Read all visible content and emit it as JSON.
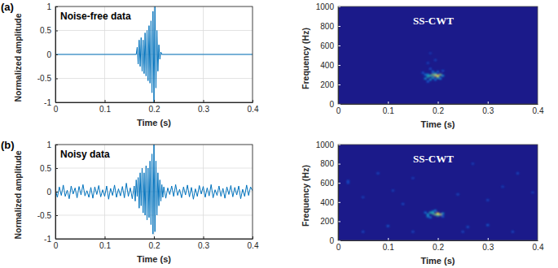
{
  "chart_data": [
    {
      "type": "line",
      "panel_label": "(a)",
      "annotation": "Noise-free data",
      "x_label": "Time (s)",
      "y_label": "Normalized amplitude",
      "xlim": [
        0,
        0.4
      ],
      "xticks": [
        0,
        0.1,
        0.2,
        0.3,
        0.4
      ],
      "ylim": [
        -1,
        1
      ],
      "yticks": [
        -1,
        -0.5,
        0,
        0.5,
        1
      ],
      "grid": true,
      "x": [
        0,
        0.164,
        0.166,
        0.168,
        0.17,
        0.172,
        0.174,
        0.176,
        0.178,
        0.18,
        0.182,
        0.184,
        0.186,
        0.188,
        0.19,
        0.192,
        0.194,
        0.196,
        0.198,
        0.2,
        0.202,
        0.204,
        0.206,
        0.208,
        0.21,
        0.212,
        0.214,
        0.216,
        0.4
      ],
      "series": [
        {
          "color": "#0072bd",
          "values": [
            0,
            0,
            0.15,
            -0.2,
            0.3,
            -0.25,
            0.35,
            -0.35,
            0.3,
            -0.4,
            0.45,
            -0.45,
            0.5,
            -0.55,
            0.6,
            -0.6,
            0.7,
            -0.8,
            0.9,
            -1,
            1,
            -0.7,
            0.5,
            -0.35,
            0.2,
            -0.1,
            0.05,
            0,
            0
          ]
        }
      ]
    },
    {
      "type": "heatmap",
      "annotation": "SS-CWT",
      "x_label": "Time (s)",
      "y_label": "Frequency (Hz)",
      "xlim": [
        0,
        0.4
      ],
      "xticks": [
        0,
        0.1,
        0.2,
        0.3,
        0.4
      ],
      "ylim": [
        0,
        1000
      ],
      "yticks": [
        0,
        200,
        400,
        600,
        800,
        1000
      ],
      "zlim": [
        0,
        1
      ],
      "cell_size": [
        0.005,
        20
      ],
      "cells": [
        [
          0.175,
          260,
          0.3
        ],
        [
          0.18,
          280,
          0.45
        ],
        [
          0.185,
          290,
          0.5
        ],
        [
          0.19,
          300,
          0.6
        ],
        [
          0.195,
          290,
          0.7
        ],
        [
          0.2,
          290,
          0.95
        ],
        [
          0.205,
          300,
          0.6
        ],
        [
          0.2,
          270,
          0.5
        ],
        [
          0.19,
          270,
          0.4
        ],
        [
          0.18,
          300,
          0.35
        ],
        [
          0.185,
          250,
          0.3
        ],
        [
          0.195,
          310,
          0.45
        ],
        [
          0.21,
          290,
          0.3
        ],
        [
          0.175,
          300,
          0.2
        ],
        [
          0.19,
          330,
          0.2
        ],
        [
          0.2,
          330,
          0.15
        ],
        [
          0.17,
          320,
          0.12
        ],
        [
          0.21,
          340,
          0.1
        ],
        [
          0.185,
          360,
          0.1
        ],
        [
          0.205,
          260,
          0.25
        ],
        [
          0.195,
          250,
          0.2
        ],
        [
          0.18,
          230,
          0.15
        ],
        [
          0.18,
          420,
          0.08
        ],
        [
          0.195,
          450,
          0.08
        ],
        [
          0.185,
          520,
          0.06
        ]
      ]
    },
    {
      "type": "line",
      "panel_label": "(b)",
      "annotation": "Noisy data",
      "x_label": "Time (s)",
      "y_label": "Normalized amplitude",
      "xlim": [
        0,
        0.4
      ],
      "xticks": [
        0,
        0.1,
        0.2,
        0.3,
        0.4
      ],
      "ylim": [
        -1,
        1
      ],
      "yticks": [
        -1,
        -0.5,
        0,
        0.5,
        1
      ],
      "grid": true,
      "x": [
        0,
        0.004,
        0.008,
        0.012,
        0.016,
        0.02,
        0.024,
        0.028,
        0.032,
        0.036,
        0.04,
        0.044,
        0.048,
        0.052,
        0.056,
        0.06,
        0.064,
        0.068,
        0.072,
        0.076,
        0.08,
        0.084,
        0.088,
        0.092,
        0.096,
        0.1,
        0.104,
        0.108,
        0.112,
        0.116,
        0.12,
        0.124,
        0.128,
        0.132,
        0.136,
        0.14,
        0.144,
        0.148,
        0.152,
        0.156,
        0.16,
        0.162,
        0.164,
        0.166,
        0.168,
        0.17,
        0.172,
        0.174,
        0.176,
        0.178,
        0.18,
        0.182,
        0.184,
        0.186,
        0.188,
        0.19,
        0.192,
        0.194,
        0.196,
        0.198,
        0.2,
        0.202,
        0.204,
        0.206,
        0.208,
        0.21,
        0.212,
        0.214,
        0.216,
        0.218,
        0.22,
        0.224,
        0.228,
        0.232,
        0.236,
        0.24,
        0.244,
        0.248,
        0.252,
        0.256,
        0.26,
        0.264,
        0.268,
        0.272,
        0.276,
        0.28,
        0.284,
        0.288,
        0.292,
        0.296,
        0.3,
        0.304,
        0.308,
        0.312,
        0.316,
        0.32,
        0.324,
        0.328,
        0.332,
        0.336,
        0.34,
        0.344,
        0.348,
        0.352,
        0.356,
        0.36,
        0.364,
        0.368,
        0.372,
        0.376,
        0.38,
        0.384,
        0.388,
        0.392,
        0.396,
        0.4
      ],
      "series": [
        {
          "color": "#0072bd",
          "values": [
            0.05,
            -0.12,
            0.1,
            -0.08,
            0.14,
            -0.1,
            0.03,
            -0.15,
            0.12,
            -0.05,
            0.08,
            -0.13,
            0.11,
            -0.07,
            0.15,
            -0.09,
            0.02,
            -0.12,
            0.09,
            -0.14,
            0.1,
            -0.06,
            0.13,
            -0.11,
            0.04,
            -0.1,
            0.12,
            -0.16,
            0.07,
            -0.08,
            0.14,
            -0.12,
            0.06,
            -0.09,
            0.11,
            -0.13,
            0.18,
            -0.1,
            0.08,
            -0.15,
            0.12,
            -0.2,
            0.25,
            -0.1,
            0.3,
            -0.35,
            0.4,
            -0.3,
            0.5,
            -0.45,
            0.4,
            -0.5,
            0.55,
            -0.6,
            0.5,
            -0.55,
            0.65,
            -0.7,
            0.8,
            -0.9,
            1,
            -0.85,
            0.65,
            -0.5,
            0.4,
            -0.3,
            0.25,
            -0.2,
            0.15,
            -0.12,
            0.1,
            -0.14,
            0.08,
            -0.06,
            0.12,
            -0.1,
            0.15,
            -0.08,
            0.05,
            -0.13,
            0.1,
            -0.07,
            0.14,
            -0.11,
            0.09,
            -0.16,
            0.06,
            -0.1,
            0.13,
            -0.05,
            0.11,
            -0.12,
            0.08,
            -0.09,
            0.15,
            -0.13,
            0.04,
            -0.08,
            0.12,
            -0.1,
            0.07,
            -0.14,
            0.1,
            -0.06,
            0.13,
            -0.11,
            0.09,
            -0.07,
            0.12,
            -0.15,
            0.05,
            -0.1,
            0.14,
            -0.08,
            0.1,
            0.02
          ]
        }
      ]
    },
    {
      "type": "heatmap",
      "annotation": "SS-CWT",
      "x_label": "Time (s)",
      "y_label": "Frequency (Hz)",
      "xlim": [
        0,
        0.4
      ],
      "xticks": [
        0,
        0.1,
        0.2,
        0.3,
        0.4
      ],
      "ylim": [
        0,
        1000
      ],
      "yticks": [
        0,
        200,
        400,
        600,
        800,
        1000
      ],
      "zlim": [
        0,
        1
      ],
      "cell_size": [
        0.005,
        20
      ],
      "cells": [
        [
          0.18,
          270,
          0.35
        ],
        [
          0.185,
          290,
          0.45
        ],
        [
          0.19,
          280,
          0.5
        ],
        [
          0.195,
          270,
          0.6
        ],
        [
          0.2,
          280,
          0.95
        ],
        [
          0.205,
          270,
          0.7
        ],
        [
          0.2,
          260,
          0.5
        ],
        [
          0.19,
          300,
          0.35
        ],
        [
          0.18,
          250,
          0.3
        ],
        [
          0.21,
          280,
          0.35
        ],
        [
          0.175,
          290,
          0.2
        ],
        [
          0.195,
          310,
          0.25
        ],
        [
          0.185,
          240,
          0.2
        ],
        [
          0.21,
          250,
          0.15
        ],
        [
          0.02,
          600,
          0.1
        ],
        [
          0.02,
          620,
          0.1
        ],
        [
          0.05,
          450,
          0.08
        ],
        [
          0.08,
          700,
          0.1
        ],
        [
          0.11,
          520,
          0.08
        ],
        [
          0.13,
          380,
          0.1
        ],
        [
          0.15,
          650,
          0.08
        ],
        [
          0.24,
          480,
          0.1
        ],
        [
          0.27,
          800,
          0.08
        ],
        [
          0.3,
          420,
          0.1
        ],
        [
          0.33,
          560,
          0.08
        ],
        [
          0.36,
          700,
          0.1
        ],
        [
          0.39,
          500,
          0.08
        ],
        [
          0.05,
          90,
          0.1
        ],
        [
          0.15,
          90,
          0.1
        ],
        [
          0.25,
          90,
          0.1
        ],
        [
          0.35,
          90,
          0.1
        ],
        [
          0.1,
          150,
          0.15
        ],
        [
          0.3,
          160,
          0.15
        ],
        [
          0.26,
          140,
          0.12
        ]
      ]
    }
  ]
}
